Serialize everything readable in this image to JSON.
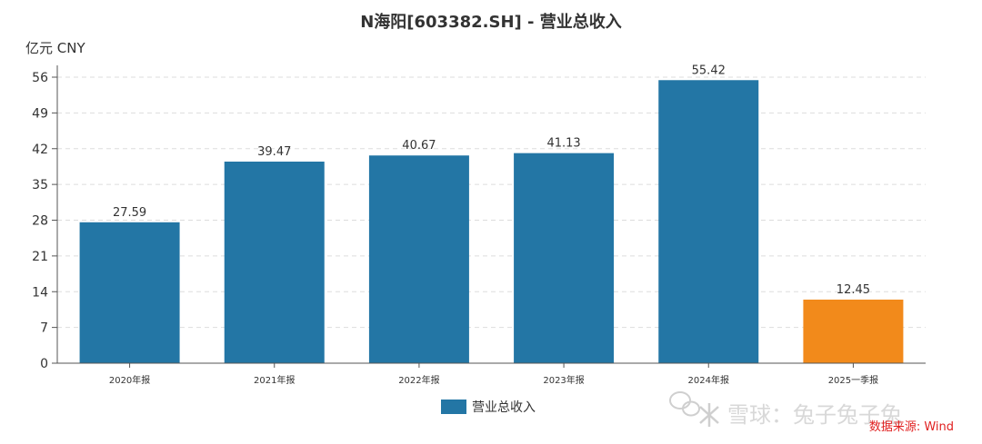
{
  "chart_data": {
    "type": "bar",
    "title": "N海阳[603382.SH] - 营业总收入",
    "unit_label": "亿元  CNY",
    "categories": [
      "2020年报",
      "2021年报",
      "2022年报",
      "2023年报",
      "2024年报",
      "2025一季报"
    ],
    "series": [
      {
        "name": "营业总收入",
        "values": [
          27.59,
          39.47,
          40.67,
          41.13,
          55.42,
          12.45
        ]
      }
    ],
    "value_labels": [
      "27.59",
      "39.47",
      "40.67",
      "41.13",
      "55.42",
      "12.45"
    ],
    "y_ticks": [
      0,
      7,
      14,
      21,
      28,
      35,
      42,
      49,
      56
    ],
    "ylim": [
      0,
      59
    ],
    "grid": true,
    "legend_position": "bottom-center",
    "colors": {
      "primary": "#2376a5",
      "highlight": "#f28a1b",
      "highlight_index": 5
    },
    "source": "数据来源: Wind",
    "watermark": "雪球：兔子兔子兔"
  }
}
